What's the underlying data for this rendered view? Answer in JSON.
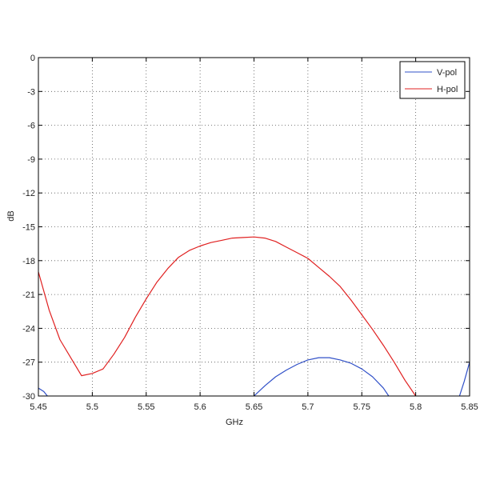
{
  "chart_data": {
    "type": "line",
    "title": "",
    "xlabel": "GHz",
    "ylabel": "dB",
    "xlim": [
      5.45,
      5.85
    ],
    "ylim": [
      -30,
      0
    ],
    "xticks": [
      "5.45",
      "5.5",
      "5.55",
      "5.6",
      "5.65",
      "5.7",
      "5.75",
      "5.8",
      "5.85"
    ],
    "yticks": [
      "0",
      "-3",
      "-6",
      "-9",
      "-12",
      "-15",
      "-18",
      "-21",
      "-24",
      "-27",
      "-30"
    ],
    "grid": true,
    "legend_position": "top-right",
    "series": [
      {
        "name": "V-pol",
        "color": "#3050c8",
        "x": [
          5.45,
          5.455,
          5.46,
          5.645,
          5.65,
          5.66,
          5.67,
          5.68,
          5.69,
          5.7,
          5.71,
          5.72,
          5.73,
          5.74,
          5.75,
          5.76,
          5.77,
          5.775,
          5.84,
          5.845,
          5.85
        ],
        "y": [
          -29.3,
          -29.6,
          -30.2,
          -30.4,
          -30.0,
          -29.1,
          -28.3,
          -27.7,
          -27.2,
          -26.8,
          -26.6,
          -26.6,
          -26.8,
          -27.1,
          -27.6,
          -28.3,
          -29.3,
          -30.0,
          -30.2,
          -28.7,
          -27.0
        ]
      },
      {
        "name": "H-pol",
        "color": "#e02020",
        "x": [
          5.45,
          5.46,
          5.47,
          5.48,
          5.49,
          5.5,
          5.51,
          5.52,
          5.53,
          5.54,
          5.55,
          5.56,
          5.57,
          5.58,
          5.59,
          5.6,
          5.61,
          5.62,
          5.63,
          5.64,
          5.65,
          5.66,
          5.67,
          5.68,
          5.69,
          5.7,
          5.71,
          5.72,
          5.73,
          5.74,
          5.75,
          5.76,
          5.77,
          5.78,
          5.79,
          5.8
        ],
        "y": [
          -19.0,
          -22.4,
          -25.0,
          -26.6,
          -28.2,
          -28.0,
          -27.6,
          -26.3,
          -24.8,
          -23.0,
          -21.4,
          -19.9,
          -18.7,
          -17.7,
          -17.1,
          -16.7,
          -16.4,
          -16.2,
          -16.0,
          -15.95,
          -15.9,
          -16.0,
          -16.3,
          -16.8,
          -17.3,
          -17.8,
          -18.6,
          -19.4,
          -20.3,
          -21.5,
          -22.8,
          -24.1,
          -25.5,
          -27.0,
          -28.6,
          -30.0
        ]
      }
    ]
  }
}
